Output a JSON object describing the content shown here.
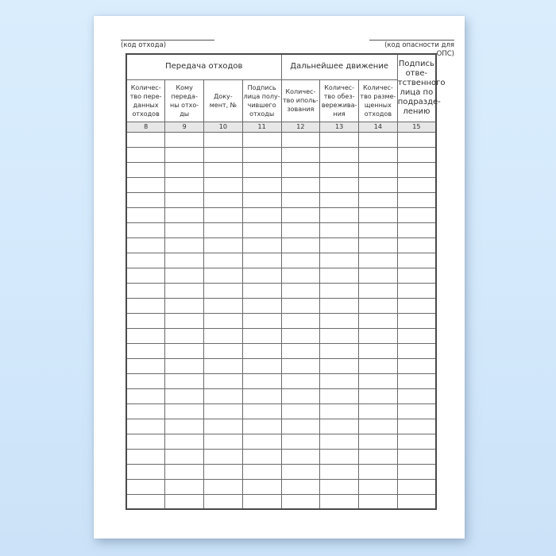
{
  "document": {
    "top_left_caption": "(код отхода)",
    "top_right_caption": "(код опасности для ОПС)"
  },
  "table": {
    "group_headers": [
      {
        "label": "Передача отходов",
        "colspan": 4
      },
      {
        "label": "Дальнейшее движение",
        "colspan": 3
      }
    ],
    "signature_header": "Подпись\nотве-\nтственного\nлица по\nподразде-\nлению",
    "column_headers": [
      "Количес-\nтво пере-\nданных\nотходов",
      "Кому\nпереда-\nны отхо-\nды",
      "Доку-\nмент, №",
      "Подпись\nлица полу-\nчившего\nотходы",
      "Количес-\nтво иполь-\nзования",
      "Количес-\nтво обез-\nвережива-\nния",
      "Количес-\nтво разме-\nщенных\nотходов"
    ],
    "column_numbers": [
      "8",
      "9",
      "10",
      "11",
      "12",
      "13",
      "14",
      "15"
    ],
    "empty_row_count": 25,
    "empty_cell_value": ""
  },
  "colors": {
    "background_top": "#d9edfd",
    "background_bottom": "#cbe2f8",
    "paper": "#ffffff",
    "table_border": "#5a5a5a",
    "number_row_background": "#e7e7e7",
    "text": "#2e2e2e"
  }
}
